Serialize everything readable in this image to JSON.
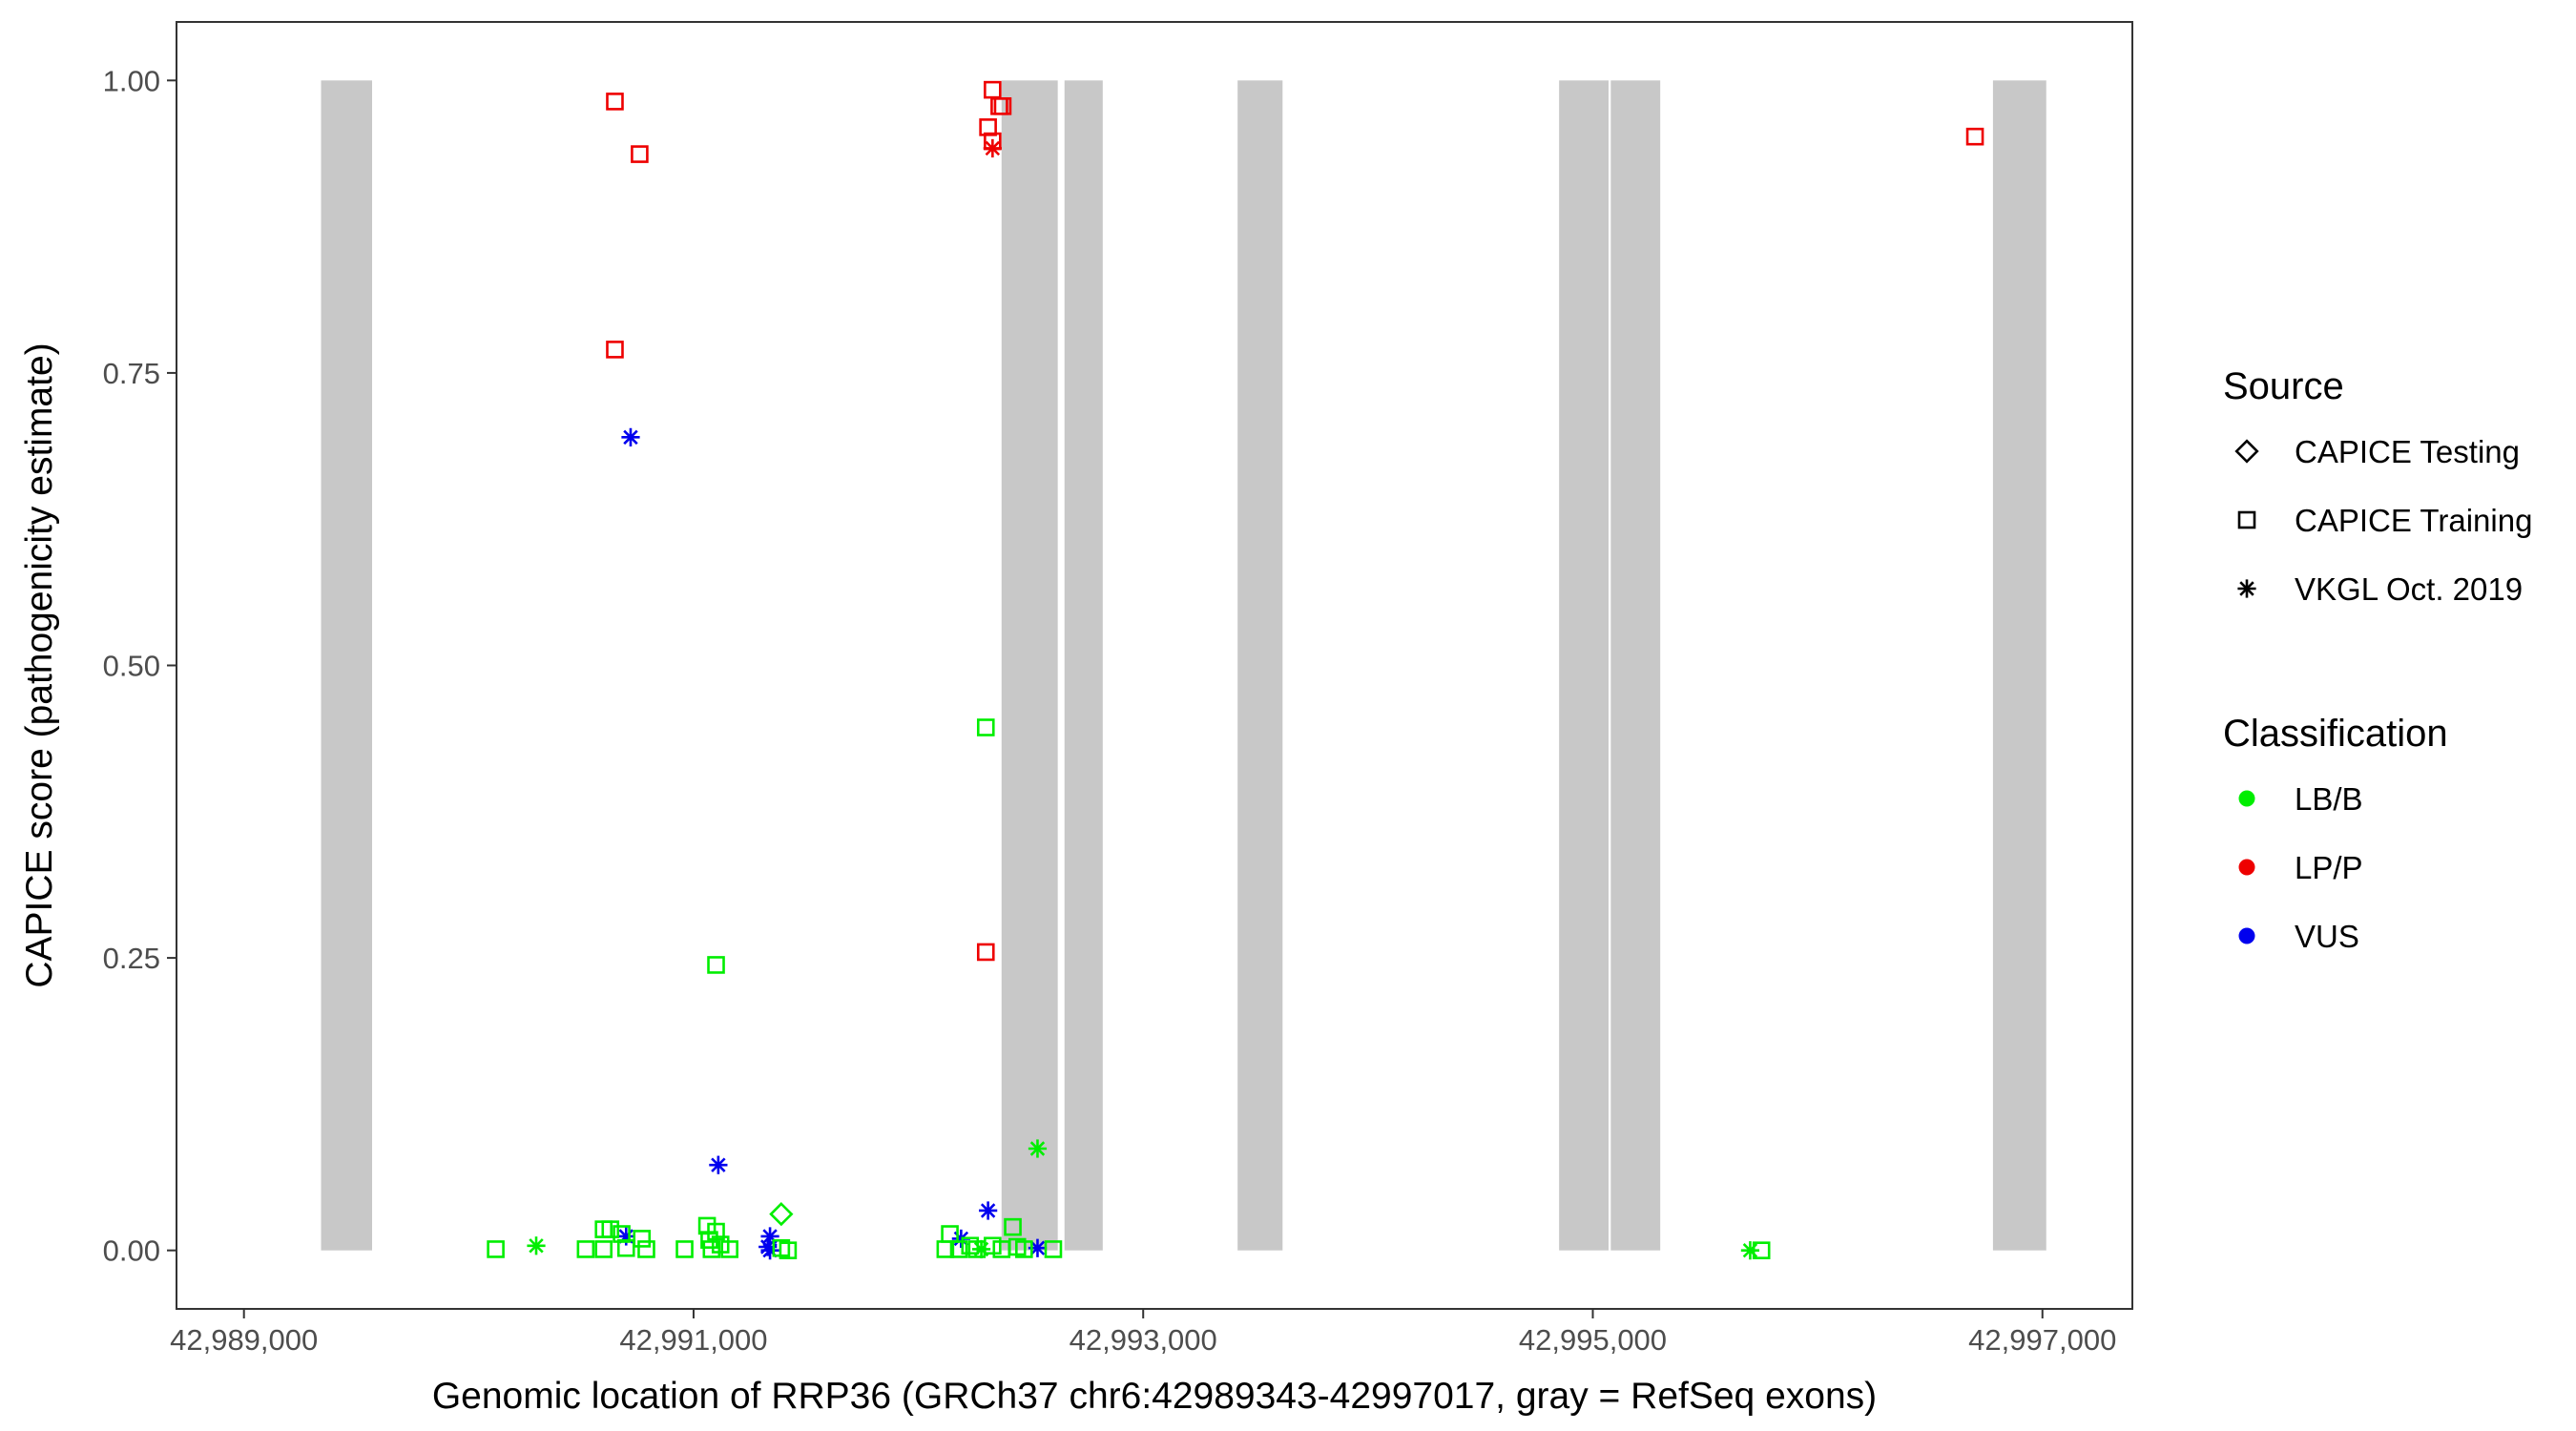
{
  "chart_data": {
    "type": "scatter",
    "xlabel": "Genomic location of RRP36 (GRCh37 chr6:42989343-42997017, gray = RefSeq exons)",
    "ylabel": "CAPICE score (pathogenicity estimate)",
    "xlim": [
      42988700,
      42997400
    ],
    "ylim": [
      -0.05,
      1.05
    ],
    "x_ticks": [
      42989000,
      42991000,
      42993000,
      42995000,
      42997000
    ],
    "x_tick_labels": [
      "42,989,000",
      "42,991,000",
      "42,993,000",
      "42,995,000",
      "42,997,000"
    ],
    "y_ticks": [
      0,
      0.25,
      0.5,
      0.75,
      1.0
    ],
    "y_tick_labels": [
      "0.00",
      "0.25",
      "0.50",
      "0.75",
      "1.00"
    ],
    "grid": false,
    "exons": [
      [
        42989343,
        42989570
      ],
      [
        42992370,
        42992620
      ],
      [
        42992650,
        42992820
      ],
      [
        42993420,
        42993620
      ],
      [
        42994850,
        42995070
      ],
      [
        42995080,
        42995300
      ],
      [
        42996780,
        42997017
      ]
    ],
    "legend": {
      "placement": "right",
      "source_title": "Source",
      "source_items": [
        {
          "label": "CAPICE Testing",
          "shape": "diamond"
        },
        {
          "label": "CAPICE Training",
          "shape": "square"
        },
        {
          "label": "VKGL Oct. 2019",
          "shape": "asterisk"
        }
      ],
      "class_title": "Classification",
      "class_items": [
        {
          "label": "LB/B",
          "color": "#00ee00"
        },
        {
          "label": "LP/P",
          "color": "#ee0000"
        },
        {
          "label": "VUS",
          "color": "#0000ee"
        }
      ]
    },
    "colors": {
      "LB/B": "#00ee00",
      "LP/P": "#ee0000",
      "VUS": "#0000ee",
      "exon": "#c8c8c8"
    },
    "points": [
      {
        "x": 42990650,
        "y": 0.982,
        "shape": "square",
        "cls": "LP/P"
      },
      {
        "x": 42990760,
        "y": 0.937,
        "shape": "square",
        "cls": "LP/P"
      },
      {
        "x": 42990650,
        "y": 0.77,
        "shape": "square",
        "cls": "LP/P"
      },
      {
        "x": 42992330,
        "y": 0.992,
        "shape": "square",
        "cls": "LP/P"
      },
      {
        "x": 42992360,
        "y": 0.978,
        "shape": "square",
        "cls": "LP/P"
      },
      {
        "x": 42992375,
        "y": 0.978,
        "shape": "square",
        "cls": "LP/P"
      },
      {
        "x": 42992310,
        "y": 0.96,
        "shape": "square",
        "cls": "LP/P"
      },
      {
        "x": 42992330,
        "y": 0.948,
        "shape": "square",
        "cls": "LP/P"
      },
      {
        "x": 42992330,
        "y": 0.942,
        "shape": "asterisk",
        "cls": "LP/P"
      },
      {
        "x": 42992300,
        "y": 0.255,
        "shape": "square",
        "cls": "LP/P"
      },
      {
        "x": 42996700,
        "y": 0.952,
        "shape": "square",
        "cls": "LP/P"
      },
      {
        "x": 42990720,
        "y": 0.695,
        "shape": "asterisk",
        "cls": "VUS"
      },
      {
        "x": 42991110,
        "y": 0.073,
        "shape": "asterisk",
        "cls": "VUS"
      },
      {
        "x": 42990700,
        "y": 0.012,
        "shape": "asterisk",
        "cls": "VUS"
      },
      {
        "x": 42991340,
        "y": 0.012,
        "shape": "asterisk",
        "cls": "VUS"
      },
      {
        "x": 42991330,
        "y": 0.003,
        "shape": "asterisk",
        "cls": "VUS"
      },
      {
        "x": 42991340,
        "y": 0.0,
        "shape": "asterisk",
        "cls": "VUS"
      },
      {
        "x": 42992310,
        "y": 0.034,
        "shape": "asterisk",
        "cls": "VUS"
      },
      {
        "x": 42992190,
        "y": 0.01,
        "shape": "asterisk",
        "cls": "VUS"
      },
      {
        "x": 42992530,
        "y": 0.002,
        "shape": "asterisk",
        "cls": "VUS"
      },
      {
        "x": 42992300,
        "y": 0.447,
        "shape": "square",
        "cls": "LB/B"
      },
      {
        "x": 42991100,
        "y": 0.244,
        "shape": "square",
        "cls": "LB/B"
      },
      {
        "x": 42992530,
        "y": 0.087,
        "shape": "asterisk",
        "cls": "LB/B"
      },
      {
        "x": 42991390,
        "y": 0.031,
        "shape": "diamond",
        "cls": "LB/B"
      },
      {
        "x": 42990120,
        "y": 0.001,
        "shape": "square",
        "cls": "LB/B"
      },
      {
        "x": 42990300,
        "y": 0.004,
        "shape": "asterisk",
        "cls": "LB/B"
      },
      {
        "x": 42990520,
        "y": 0.001,
        "shape": "square",
        "cls": "LB/B"
      },
      {
        "x": 42990600,
        "y": 0.018,
        "shape": "square",
        "cls": "LB/B"
      },
      {
        "x": 42990630,
        "y": 0.018,
        "shape": "square",
        "cls": "LB/B"
      },
      {
        "x": 42990600,
        "y": 0.001,
        "shape": "square",
        "cls": "LB/B"
      },
      {
        "x": 42990680,
        "y": 0.014,
        "shape": "square",
        "cls": "LB/B"
      },
      {
        "x": 42990700,
        "y": 0.002,
        "shape": "square",
        "cls": "LB/B"
      },
      {
        "x": 42990770,
        "y": 0.01,
        "shape": "square",
        "cls": "LB/B"
      },
      {
        "x": 42990790,
        "y": 0.001,
        "shape": "square",
        "cls": "LB/B"
      },
      {
        "x": 42990960,
        "y": 0.001,
        "shape": "square",
        "cls": "LB/B"
      },
      {
        "x": 42991060,
        "y": 0.021,
        "shape": "square",
        "cls": "LB/B"
      },
      {
        "x": 42991100,
        "y": 0.016,
        "shape": "square",
        "cls": "LB/B"
      },
      {
        "x": 42991070,
        "y": 0.009,
        "shape": "square",
        "cls": "LB/B"
      },
      {
        "x": 42991120,
        "y": 0.005,
        "shape": "square",
        "cls": "LB/B"
      },
      {
        "x": 42991080,
        "y": 0.001,
        "shape": "square",
        "cls": "LB/B"
      },
      {
        "x": 42991160,
        "y": 0.001,
        "shape": "square",
        "cls": "LB/B"
      },
      {
        "x": 42991390,
        "y": 0.002,
        "shape": "square",
        "cls": "LB/B"
      },
      {
        "x": 42991420,
        "y": 0.0,
        "shape": "square",
        "cls": "LB/B"
      },
      {
        "x": 42992140,
        "y": 0.014,
        "shape": "square",
        "cls": "LB/B"
      },
      {
        "x": 42992120,
        "y": 0.001,
        "shape": "square",
        "cls": "LB/B"
      },
      {
        "x": 42992180,
        "y": 0.001,
        "shape": "square",
        "cls": "LB/B"
      },
      {
        "x": 42992230,
        "y": 0.004,
        "shape": "square",
        "cls": "LB/B"
      },
      {
        "x": 42992260,
        "y": 0.001,
        "shape": "square",
        "cls": "LB/B"
      },
      {
        "x": 42992280,
        "y": 0.001,
        "shape": "asterisk",
        "cls": "LB/B"
      },
      {
        "x": 42992330,
        "y": 0.004,
        "shape": "square",
        "cls": "LB/B"
      },
      {
        "x": 42992370,
        "y": 0.001,
        "shape": "square",
        "cls": "LB/B"
      },
      {
        "x": 42992420,
        "y": 0.02,
        "shape": "square",
        "cls": "LB/B"
      },
      {
        "x": 42992440,
        "y": 0.003,
        "shape": "square",
        "cls": "LB/B"
      },
      {
        "x": 42992470,
        "y": 0.001,
        "shape": "square",
        "cls": "LB/B"
      },
      {
        "x": 42992600,
        "y": 0.001,
        "shape": "square",
        "cls": "LB/B"
      },
      {
        "x": 42995700,
        "y": 0.0,
        "shape": "asterisk",
        "cls": "LB/B"
      },
      {
        "x": 42995750,
        "y": 0.0,
        "shape": "square",
        "cls": "LB/B"
      }
    ]
  }
}
